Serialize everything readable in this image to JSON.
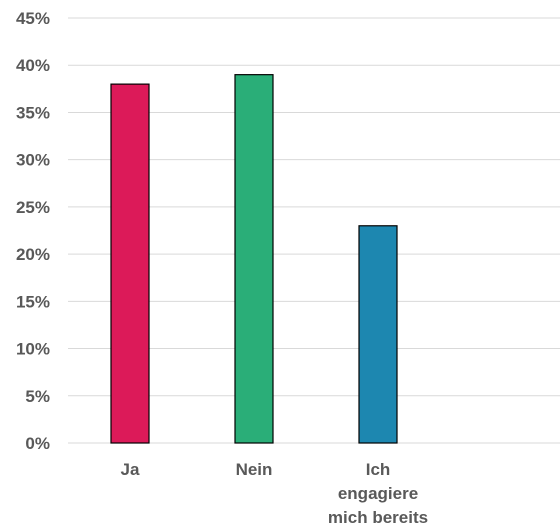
{
  "chart_data": {
    "type": "bar",
    "title": "",
    "xlabel": "",
    "ylabel": "",
    "categories": [
      [
        "Ja"
      ],
      [
        "Nein"
      ],
      [
        "Ich",
        "engagiere",
        "mich bereits"
      ]
    ],
    "values": [
      38,
      39,
      23
    ],
    "unit": "%",
    "ylim": [
      0,
      45
    ],
    "yticks": [
      "0%",
      "5%",
      "10%",
      "15%",
      "20%",
      "25%",
      "30%",
      "35%",
      "40%",
      "45%"
    ],
    "grid": true,
    "legend": "none",
    "colors": [
      "#dc1a59",
      "#2aae78",
      "#1d87b0"
    ],
    "gridColor": "#d9d9d9",
    "edgeColor": "#000000"
  }
}
